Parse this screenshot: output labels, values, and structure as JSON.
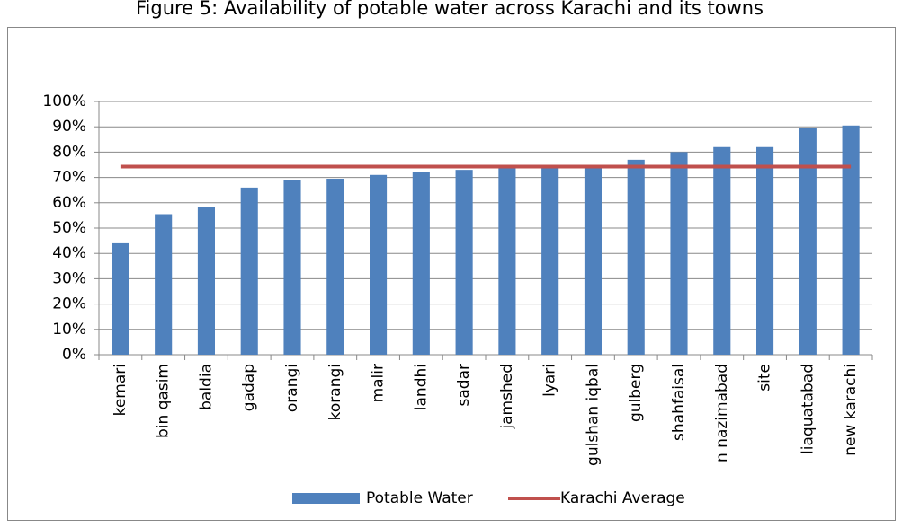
{
  "chart_data": {
    "type": "bar",
    "title": "Figure 5: Availability of potable water across Karachi and its towns",
    "categories": [
      "kemari",
      "bin qasim",
      "baldia",
      "gadap",
      "orangi",
      "korangi",
      "malir",
      "landhi",
      "sadar",
      "jamshed",
      "lyari",
      "gulshan iqbal",
      "gulberg",
      "shahfaisal",
      "n nazimabad",
      "site",
      "liaquatabad",
      "new karachi"
    ],
    "series": [
      {
        "name": "Potable Water",
        "type": "bar",
        "color": "#4f81bd",
        "values": [
          44,
          55.5,
          58.5,
          66,
          69,
          69.5,
          71,
          72,
          73,
          74,
          74,
          74.5,
          77,
          80,
          82,
          82,
          89.5,
          90.5
        ]
      },
      {
        "name": "Karachi Average",
        "type": "line",
        "color": "#c0504d",
        "values": [
          74.3,
          74.3,
          74.3,
          74.3,
          74.3,
          74.3,
          74.3,
          74.3,
          74.3,
          74.3,
          74.3,
          74.3,
          74.3,
          74.3,
          74.3,
          74.3,
          74.3,
          74.3
        ]
      }
    ],
    "ylim": [
      0,
      100
    ],
    "yticks": [
      {
        "value": 0,
        "label": "0%"
      },
      {
        "value": 10,
        "label": "10%"
      },
      {
        "value": 20,
        "label": "20%"
      },
      {
        "value": 30,
        "label": "30%"
      },
      {
        "value": 40,
        "label": "40%"
      },
      {
        "value": 50,
        "label": "50%"
      },
      {
        "value": 60,
        "label": "60%"
      },
      {
        "value": 70,
        "label": "70%"
      },
      {
        "value": 80,
        "label": "80%"
      },
      {
        "value": 90,
        "label": "90%"
      },
      {
        "value": 100,
        "label": "100%"
      }
    ],
    "grid": true,
    "legend": "bottom"
  }
}
